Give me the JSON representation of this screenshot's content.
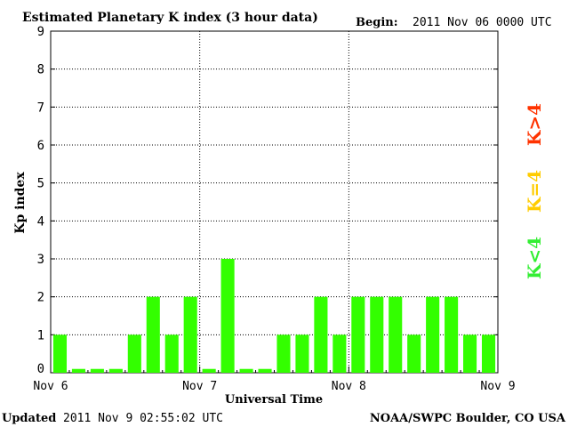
{
  "header": {
    "title": "Estimated Planetary K index (3 hour data)",
    "begin_label": "Begin:",
    "begin_value": "2011 Nov 06 0000 UTC"
  },
  "footer": {
    "updated_label": "Updated",
    "updated_value": "2011 Nov  9 02:55:02 UTC",
    "credit": "NOAA/SWPC Boulder, CO USA"
  },
  "legend": [
    {
      "label": "K>4",
      "color": "#ff3300"
    },
    {
      "label": "K=4",
      "color": "#ffcc00"
    },
    {
      "label": "K<4",
      "color": "#33ee33"
    }
  ],
  "chart_data": {
    "type": "bar",
    "title": "Estimated Planetary K index (3 hour data)",
    "xlabel": "Universal Time",
    "ylabel": "Kp index",
    "ylim": [
      0,
      9
    ],
    "yticks": [
      0,
      1,
      2,
      3,
      4,
      5,
      6,
      7,
      8,
      9
    ],
    "x_tick_labels": [
      "Nov 6",
      "Nov 7",
      "Nov 8",
      "Nov 9"
    ],
    "grid": true,
    "bar_color": "#33ff00",
    "values": [
      1,
      0,
      0,
      0,
      1,
      2,
      1,
      2,
      0,
      3,
      0,
      0,
      1,
      1,
      2,
      1,
      2,
      2,
      2,
      1,
      2,
      2,
      1,
      1
    ],
    "zero_bar_display_value": 0.1
  }
}
